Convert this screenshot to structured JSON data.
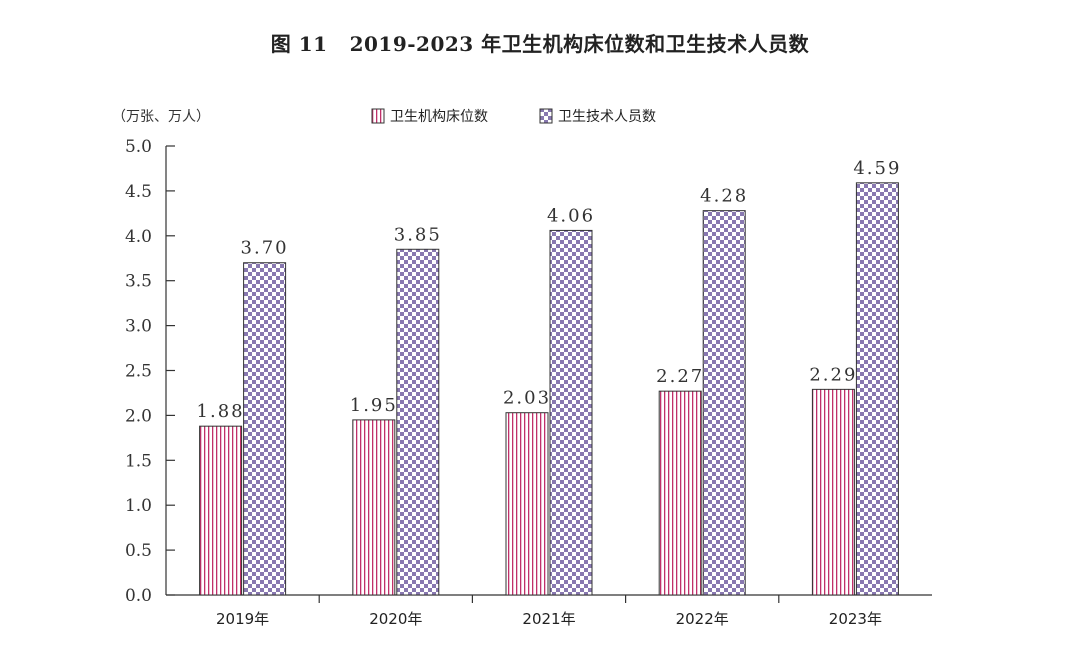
{
  "figure_number": "图 11",
  "chart_data": {
    "type": "bar",
    "title": "2019-2023 年卫生机构床位数和卫生技术人员数",
    "unit_label": "（万张、万人）",
    "categories": [
      "2019年",
      "2020年",
      "2021年",
      "2022年",
      "2023年"
    ],
    "series": [
      {
        "name": "卫生机构床位数",
        "values": [
          1.88,
          1.95,
          2.03,
          2.27,
          2.29
        ],
        "value_labels": [
          "1.88",
          "1.95",
          "2.03",
          "2.27",
          "2.29"
        ],
        "color": "#c0306a",
        "pattern": "vertical-stripes"
      },
      {
        "name": "卫生技术人员数",
        "values": [
          3.7,
          3.85,
          4.06,
          4.28,
          4.59
        ],
        "value_labels": [
          "3.70",
          "3.85",
          "4.06",
          "4.28",
          "4.59"
        ],
        "color": "#8878b0",
        "pattern": "checkerboard"
      }
    ],
    "y_ticks": [
      "0.0",
      "0.5",
      "1.0",
      "1.5",
      "2.0",
      "2.5",
      "3.0",
      "3.5",
      "4.0",
      "4.5",
      "5.0"
    ],
    "ylim": [
      0,
      5
    ],
    "legend_position": "top",
    "grid": false
  }
}
